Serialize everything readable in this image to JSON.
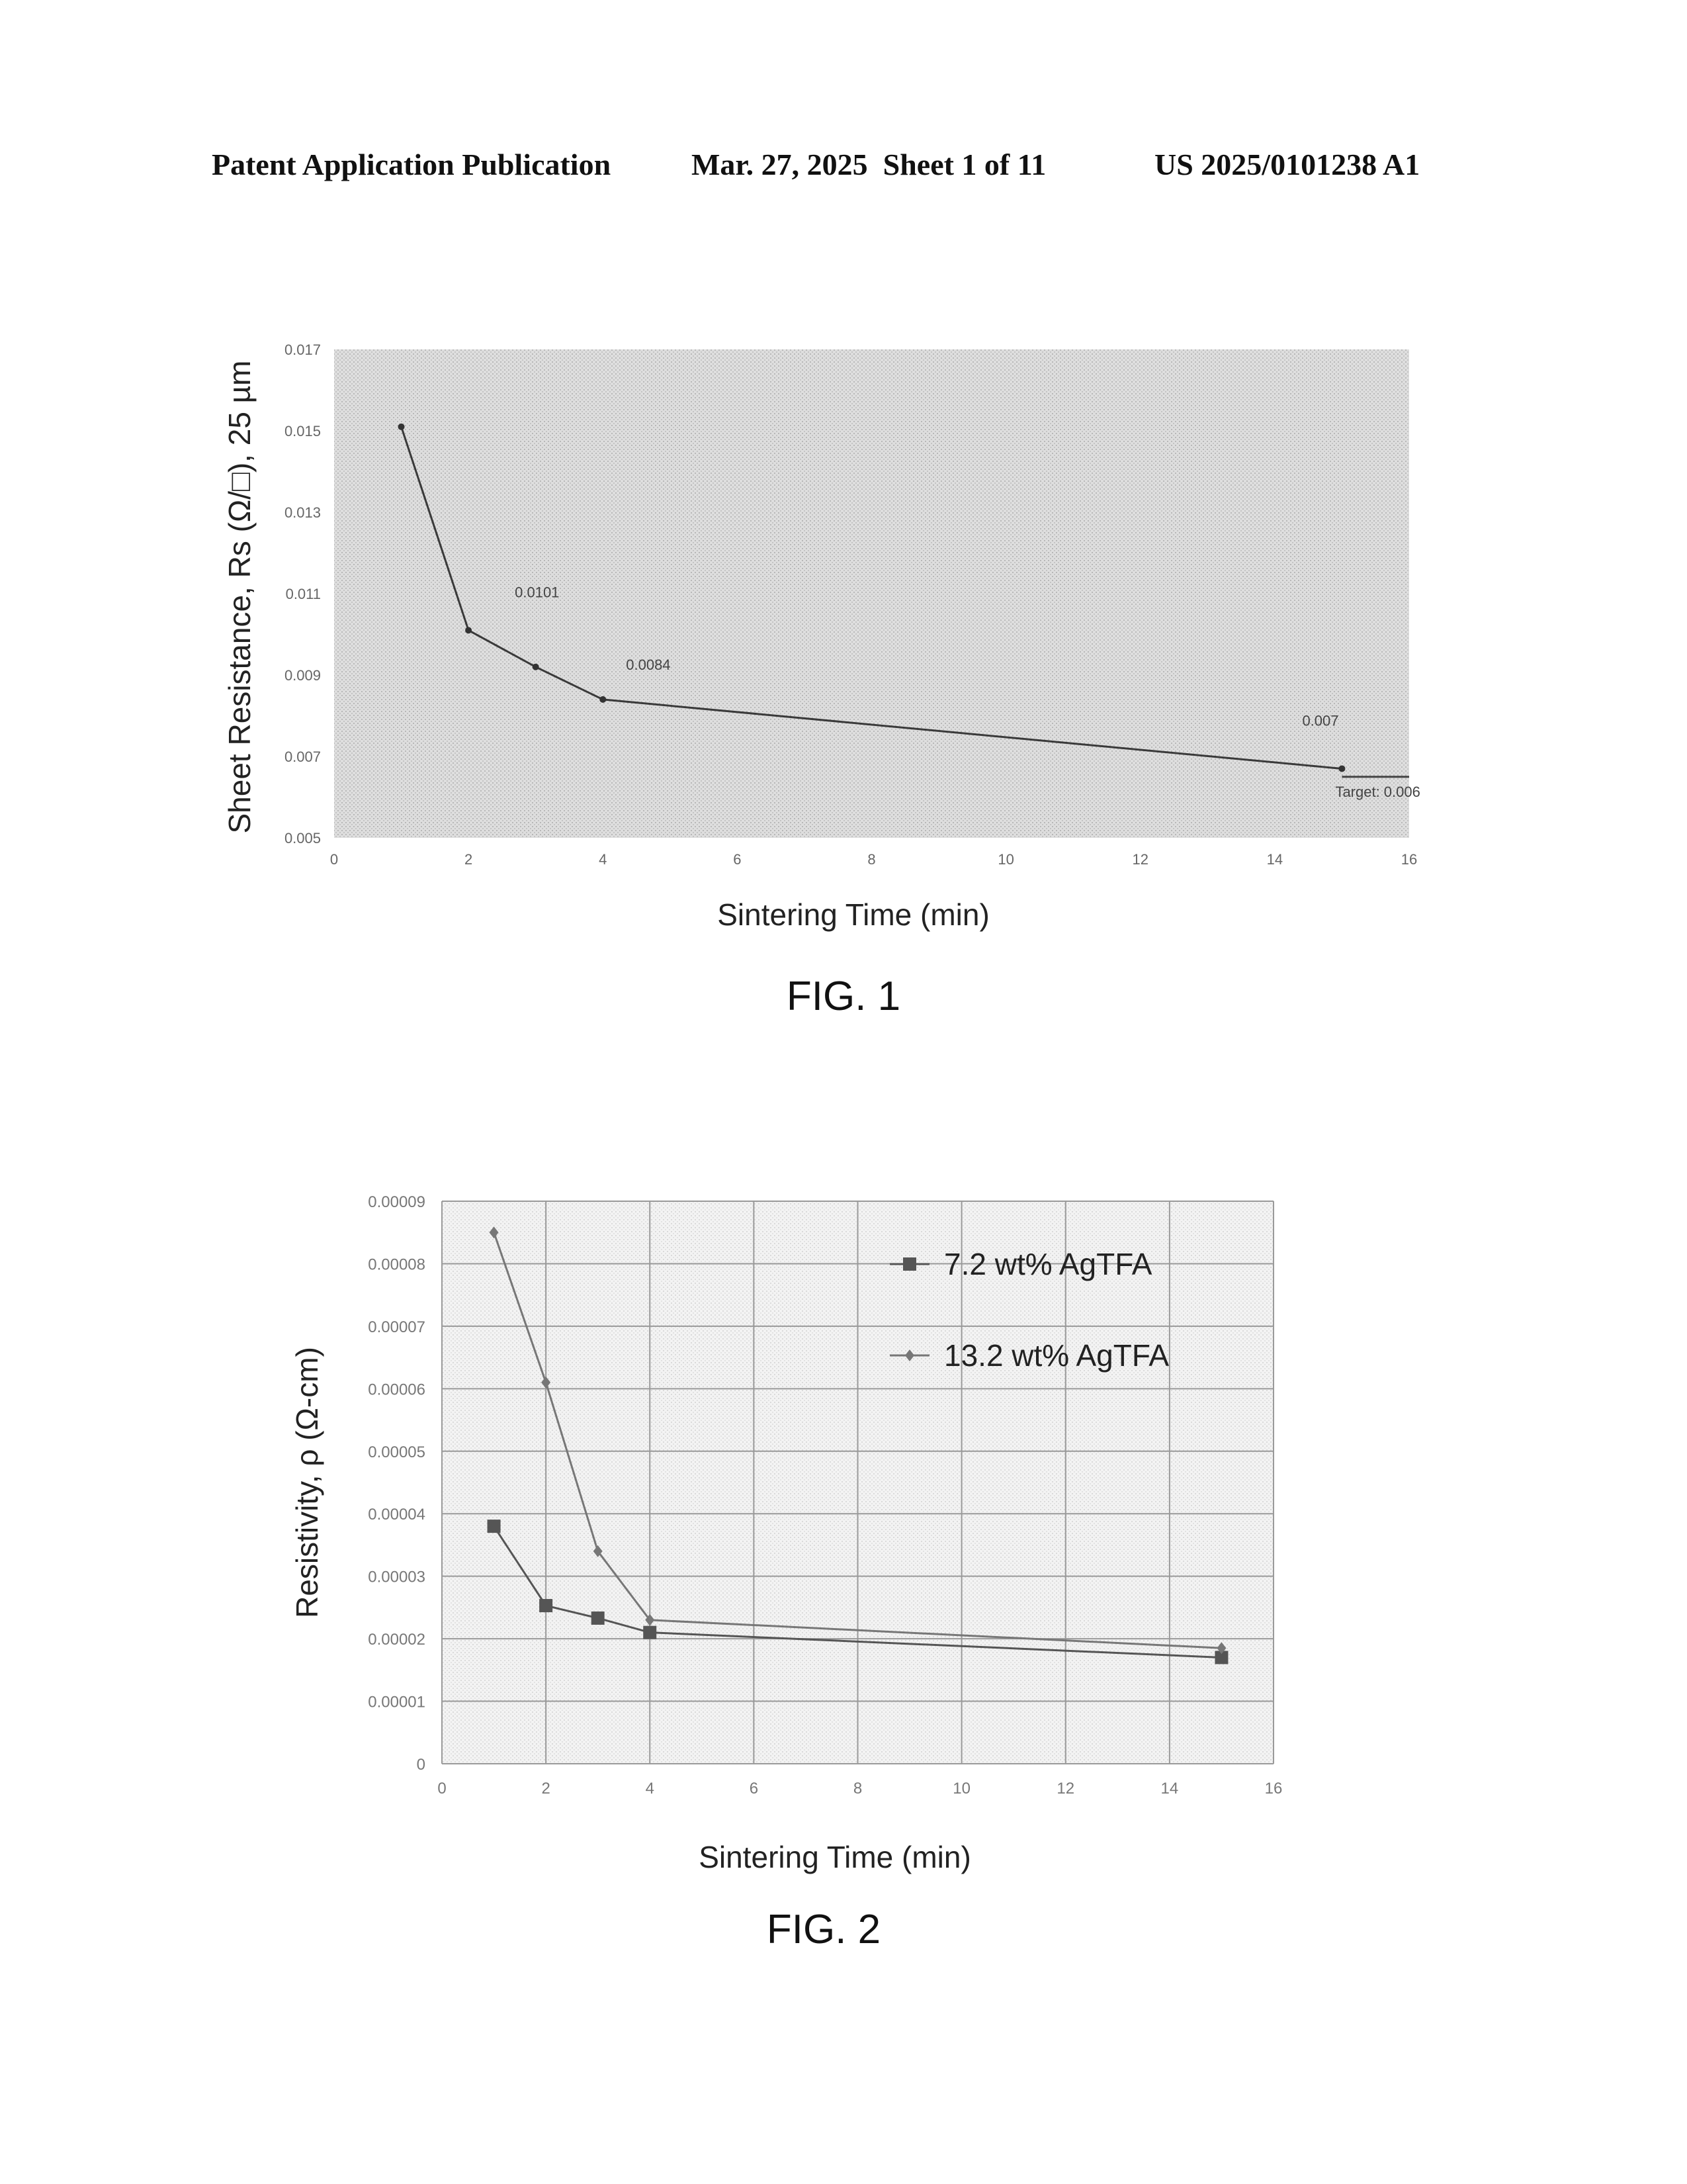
{
  "header": {
    "publication": "Patent Application Publication",
    "date_sheet": "Mar. 27, 2025  Sheet 1 of 11",
    "pub_number": "US 2025/0101238 A1"
  },
  "figures": [
    {
      "label": "FIG. 1"
    },
    {
      "label": "FIG. 2"
    }
  ],
  "chart_data": [
    {
      "type": "line",
      "xlabel": "Sintering Time (min)",
      "ylabel": "Sheet Resistance, Rs (Ω/□), 25 µm",
      "xlim": [
        0,
        16
      ],
      "ylim": [
        0.005,
        0.017
      ],
      "xticks": [
        "0",
        "2",
        "4",
        "6",
        "8",
        "10",
        "12",
        "14",
        "16"
      ],
      "yticks": [
        "0.005",
        "0.007",
        "0.009",
        "0.011",
        "0.013",
        "0.015",
        "0.017"
      ],
      "series": [
        {
          "x": [
            1,
            2,
            3,
            4,
            15
          ],
          "y": [
            0.0151,
            0.0101,
            0.0092,
            0.0084,
            0.0067
          ]
        }
      ],
      "data_labels": [
        {
          "text": "0.0101",
          "x": 2,
          "y": 0.0101
        },
        {
          "text": "0.0084",
          "x": 4,
          "y": 0.0084
        },
        {
          "text": "0.007",
          "x": 15,
          "y": 0.0067
        }
      ],
      "target_line": {
        "y": 0.0065,
        "x": [
          15,
          16
        ],
        "label": "Target: 0.006"
      },
      "grid": false,
      "background": "stippled"
    },
    {
      "type": "line",
      "xlabel": "Sintering Time (min)",
      "ylabel": "Resistivity, ρ (Ω-cm)",
      "xlim": [
        0,
        16
      ],
      "ylim": [
        0,
        9e-05
      ],
      "xticks": [
        "0",
        "2",
        "4",
        "6",
        "8",
        "10",
        "12",
        "14",
        "16"
      ],
      "yticks": [
        "0",
        "0.00001",
        "0.00002",
        "0.00003",
        "0.00004",
        "0.00005",
        "0.00006",
        "0.00007",
        "0.00008",
        "0.00009"
      ],
      "series": [
        {
          "name": "7.2 wt% AgTFA",
          "marker": "square",
          "x": [
            1,
            2,
            3,
            4,
            15
          ],
          "y": [
            3.8e-05,
            2.53e-05,
            2.33e-05,
            2.1e-05,
            1.7e-05
          ]
        },
        {
          "name": "13.2 wt% AgTFA",
          "marker": "diamond",
          "x": [
            1,
            2,
            3,
            4,
            15
          ],
          "y": [
            8.5e-05,
            6.1e-05,
            3.4e-05,
            2.3e-05,
            1.85e-05
          ]
        }
      ],
      "legend": "top-right",
      "grid": true
    }
  ]
}
